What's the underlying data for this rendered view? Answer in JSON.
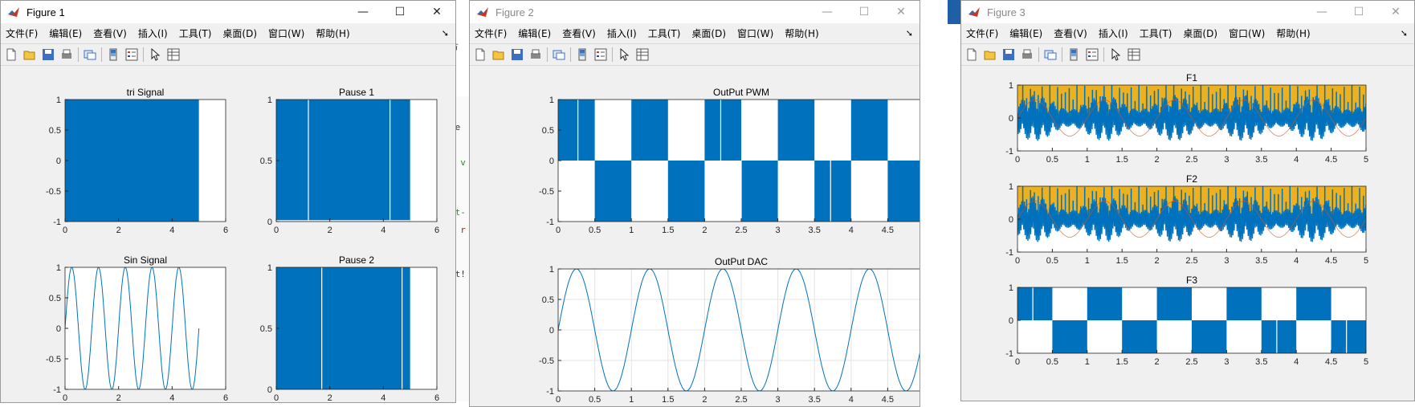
{
  "menus": [
    "文件(F)",
    "编辑(E)",
    "查看(V)",
    "插入(I)",
    "工具(T)",
    "桌面(D)",
    "窗口(W)",
    "帮助(H)"
  ],
  "colors": {
    "blue": "#0072BD",
    "orange": "#EDB120",
    "red": "#D95319",
    "background": "#f0f0f0"
  },
  "toolbar_icons": [
    "new-figure-icon",
    "open-file-icon",
    "save-icon",
    "print-icon",
    "link-plot-icon",
    "colorbar-icon",
    "legend-icon",
    "pointer-icon",
    "property-inspector-icon"
  ],
  "window_controls": {
    "minimize": "—",
    "maximize": "☐",
    "close": "✕"
  },
  "background": {
    "code_fragments": [
      "方",
      "me",
      "n",
      "e v",
      "*t-",
      ", r",
      "ot!"
    ]
  },
  "windows": [
    {
      "title": "Figure 1",
      "active": true
    },
    {
      "title": "Figure 2",
      "active": false
    },
    {
      "title": "Figure 3",
      "active": false
    }
  ],
  "chart_data": [
    {
      "figure": "Figure 1",
      "type": "area",
      "title": "tri Signal",
      "xlim": [
        0,
        6
      ],
      "ylim": [
        -1,
        1
      ],
      "xticks": [
        "0",
        "2",
        "4",
        "6"
      ],
      "yticks": [
        "-1",
        "-0.5",
        "0",
        "0.5",
        "1"
      ],
      "series": [
        {
          "values_shape": "dense oscillation filling [-1,1] from x=0 to x=5",
          "color": "#0072BD"
        }
      ]
    },
    {
      "figure": "Figure 1",
      "type": "area",
      "title": "Pause 1",
      "xlim": [
        0,
        6
      ],
      "ylim": [
        0,
        1
      ],
      "xticks": [
        "0",
        "2",
        "4",
        "6"
      ],
      "yticks": [
        "0",
        "0.5",
        "1"
      ],
      "series": [
        {
          "values_shape": "pulse train 0/1 filling x=0 to x=5",
          "color": "#0072BD"
        }
      ]
    },
    {
      "figure": "Figure 1",
      "type": "line",
      "title": "Sin Signal",
      "xlim": [
        0,
        6
      ],
      "ylim": [
        -1,
        1
      ],
      "xticks": [
        "0",
        "2",
        "4",
        "6"
      ],
      "yticks": [
        "-1",
        "-0.5",
        "0",
        "0.5",
        "1"
      ],
      "series": [
        {
          "function": "sin",
          "frequency": 1,
          "x_range": [
            0,
            5
          ],
          "color": "#0072BD"
        }
      ]
    },
    {
      "figure": "Figure 1",
      "type": "area",
      "title": "Pause 2",
      "xlim": [
        0,
        6
      ],
      "ylim": [
        0,
        1
      ],
      "xticks": [
        "0",
        "2",
        "4",
        "6"
      ],
      "yticks": [
        "0",
        "0.5",
        "1"
      ],
      "series": [
        {
          "values_shape": "pulse train 0/1 filling x=0 to x=5",
          "color": "#0072BD"
        }
      ]
    },
    {
      "figure": "Figure 2",
      "type": "area",
      "title": "OutPut PWM",
      "xlim": [
        0,
        5
      ],
      "ylim": [
        -1,
        1
      ],
      "xticks": [
        "0",
        "0.5",
        "1",
        "1.5",
        "2",
        "2.5",
        "3",
        "3.5",
        "4",
        "4.5",
        "5"
      ],
      "yticks": [
        "-1",
        "-0.5",
        "0",
        "0.5",
        "1"
      ],
      "series": [
        {
          "function": "pwm",
          "alternating_half_period": 0.5,
          "color": "#0072BD"
        }
      ]
    },
    {
      "figure": "Figure 2",
      "type": "line",
      "title": "OutPut DAC",
      "xlim": [
        0,
        5
      ],
      "ylim": [
        -1,
        1
      ],
      "xticks": [
        "0",
        "0.5",
        "1",
        "1.5",
        "2",
        "2.5",
        "3",
        "3.5",
        "4",
        "4.5",
        "5"
      ],
      "yticks": [
        "-1",
        "-0.5",
        "0",
        "0.5",
        "1"
      ],
      "grid": true,
      "series": [
        {
          "function": "sin",
          "frequency": 1,
          "x_range": [
            0,
            5
          ],
          "color": "#0072BD"
        }
      ]
    },
    {
      "figure": "Figure 3",
      "type": "area",
      "title": "F1",
      "xlim": [
        0,
        5
      ],
      "ylim": [
        -1,
        1
      ],
      "xticks": [
        "0",
        "0.5",
        "1",
        "1.5",
        "2",
        "2.5",
        "3",
        "3.5",
        "4",
        "4.5",
        "5"
      ],
      "yticks": [
        "-1",
        "0",
        "1"
      ],
      "series": [
        {
          "color": "#EDB120"
        },
        {
          "color": "#0072BD"
        },
        {
          "color": "#D95319"
        }
      ]
    },
    {
      "figure": "Figure 3",
      "type": "area",
      "title": "F2",
      "xlim": [
        0,
        5
      ],
      "ylim": [
        -1,
        1
      ],
      "xticks": [
        "0",
        "0.5",
        "1",
        "1.5",
        "2",
        "2.5",
        "3",
        "3.5",
        "4",
        "4.5",
        "5"
      ],
      "yticks": [
        "-1",
        "0",
        "1"
      ],
      "series": [
        {
          "color": "#EDB120"
        },
        {
          "color": "#0072BD"
        },
        {
          "color": "#D95319"
        }
      ]
    },
    {
      "figure": "Figure 3",
      "type": "area",
      "title": "F3",
      "xlim": [
        0,
        5
      ],
      "ylim": [
        -1,
        1
      ],
      "xticks": [
        "0",
        "0.5",
        "1",
        "1.5",
        "2",
        "2.5",
        "3",
        "3.5",
        "4",
        "4.5",
        "5"
      ],
      "yticks": [
        "-1",
        "0",
        "1"
      ],
      "series": [
        {
          "function": "pwm",
          "alternating_half_period": 0.5,
          "color": "#0072BD"
        }
      ]
    }
  ]
}
